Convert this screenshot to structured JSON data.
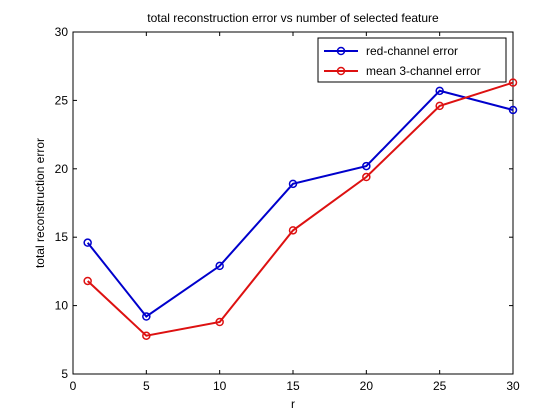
{
  "chart_data": {
    "type": "line",
    "title": "total reconstruction error vs number of selected feature",
    "xlabel": "r",
    "ylabel": "total reconstruction error",
    "xlim": [
      0,
      30
    ],
    "ylim": [
      5,
      30
    ],
    "xticks": [
      "0",
      "5",
      "10",
      "15",
      "20",
      "25",
      "30"
    ],
    "yticks": [
      "5",
      "10",
      "15",
      "20",
      "25",
      "30"
    ],
    "grid": false,
    "legend_position": "top-right",
    "x": [
      1,
      5,
      10,
      15,
      20,
      25,
      30
    ],
    "series": [
      {
        "name": "red-channel error",
        "color": "#0000cc",
        "marker": "circle",
        "values": [
          14.6,
          9.2,
          12.9,
          18.9,
          20.2,
          25.7,
          24.3
        ]
      },
      {
        "name": "mean 3-channel error",
        "color": "#dd1111",
        "marker": "circle",
        "values": [
          11.8,
          7.8,
          8.8,
          15.5,
          19.4,
          24.6,
          26.3
        ]
      }
    ]
  }
}
